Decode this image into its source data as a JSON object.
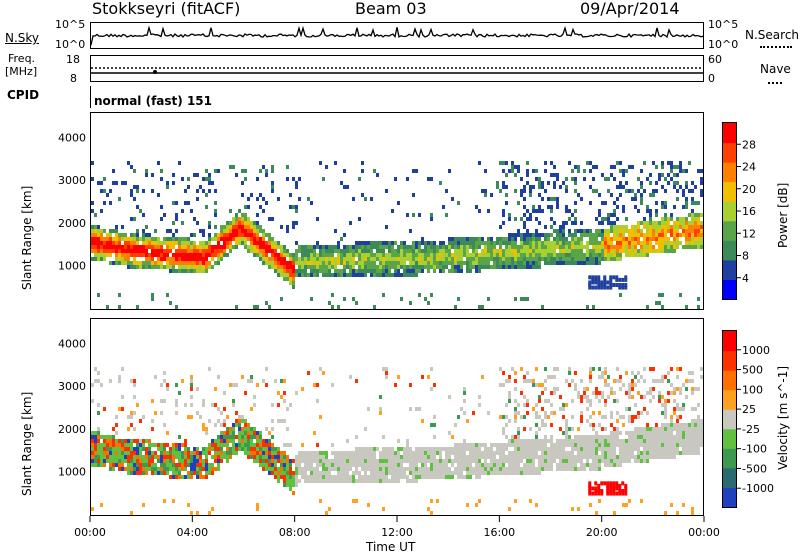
{
  "header": {
    "station": "Stokkseyri (fitACF)",
    "beam": "Beam 03",
    "date": "09/Apr/2014"
  },
  "strip_labels": {
    "nsky": "N.Sky",
    "nsky_top": "10^5",
    "nsky_bottom": "10^0",
    "nsearch_top": "10^5",
    "nsearch_bottom": "10^0",
    "nsearch": "N.Search",
    "freq": "Freq.",
    "freq_unit": "[MHz]",
    "freq_top": "18",
    "freq_bottom": "8",
    "nave_top": "60",
    "nave_bottom": "0",
    "nave": "Nave",
    "cpid": "CPID",
    "cpid_value": "normal (fast) 151"
  },
  "chart_data": [
    {
      "type": "heatmap",
      "name": "power-panel",
      "ylabel": "Slant Range [km]",
      "yticks": [
        1000,
        2000,
        3000,
        4000
      ],
      "ylim": [
        0,
        4600
      ],
      "colorbar_label": "Power [dB]",
      "colorbar_ticks": [
        "28",
        "24",
        "20",
        "16",
        "12",
        "8",
        "4"
      ],
      "colors": [
        "#0000ff",
        "#2040a0",
        "#3c8a5a",
        "#5aa54a",
        "#a8d030",
        "#f0c000",
        "#ff8000",
        "#ff4000",
        "#ff0000"
      ]
    },
    {
      "type": "heatmap",
      "name": "velocity-panel",
      "ylabel": "Slant Range [km]",
      "yticks": [
        1000,
        2000,
        3000,
        4000
      ],
      "ylim": [
        0,
        4600
      ],
      "colorbar_label": "Velocity [m s^-1]",
      "colorbar_ticks": [
        "1000",
        "500",
        "100",
        "25",
        "-25",
        "-100",
        "-500",
        "-1000"
      ],
      "colors": [
        "#2040c0",
        "#2a6a70",
        "#3c9a50",
        "#60c040",
        "#c8c8c0",
        "#ffa020",
        "#ff7000",
        "#ff3000",
        "#ff0000"
      ]
    }
  ],
  "xaxis": {
    "label": "Time UT",
    "ticks": [
      "00:00",
      "04:00",
      "08:00",
      "12:00",
      "16:00",
      "20:00",
      "00:00"
    ]
  }
}
